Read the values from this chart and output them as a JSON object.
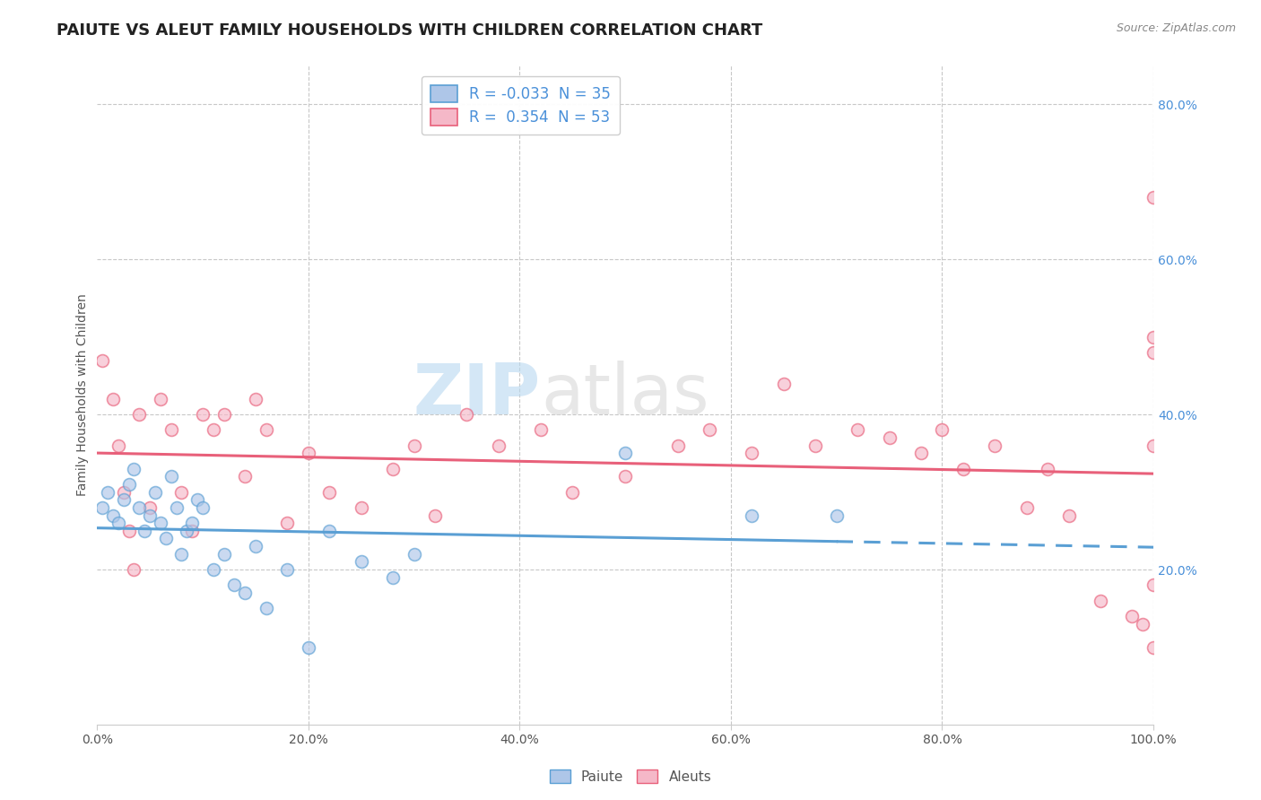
{
  "title": "PAIUTE VS ALEUT FAMILY HOUSEHOLDS WITH CHILDREN CORRELATION CHART",
  "source": "Source: ZipAtlas.com",
  "xlabel": "",
  "ylabel": "Family Households with Children",
  "watermark": "ZIPatlas",
  "background_color": "#ffffff",
  "plot_bg_color": "#ffffff",
  "grid_color": "#c8c8c8",
  "paiute_x": [
    0.5,
    1.0,
    1.5,
    2.0,
    2.5,
    3.0,
    3.5,
    4.0,
    4.5,
    5.0,
    5.5,
    6.0,
    6.5,
    7.0,
    7.5,
    8.0,
    8.5,
    9.0,
    9.5,
    10.0,
    11.0,
    12.0,
    13.0,
    14.0,
    15.0,
    16.0,
    18.0,
    20.0,
    22.0,
    25.0,
    28.0,
    30.0,
    50.0,
    62.0,
    70.0
  ],
  "paiute_y": [
    28.0,
    30.0,
    27.0,
    26.0,
    29.0,
    31.0,
    33.0,
    28.0,
    25.0,
    27.0,
    30.0,
    26.0,
    24.0,
    32.0,
    28.0,
    22.0,
    25.0,
    26.0,
    29.0,
    28.0,
    20.0,
    22.0,
    18.0,
    17.0,
    23.0,
    15.0,
    20.0,
    10.0,
    25.0,
    21.0,
    19.0,
    22.0,
    35.0,
    27.0,
    27.0
  ],
  "aleuts_x": [
    0.5,
    1.5,
    2.0,
    2.5,
    3.0,
    3.5,
    4.0,
    5.0,
    6.0,
    7.0,
    8.0,
    9.0,
    10.0,
    11.0,
    12.0,
    14.0,
    15.0,
    16.0,
    18.0,
    20.0,
    22.0,
    25.0,
    28.0,
    30.0,
    32.0,
    35.0,
    38.0,
    42.0,
    45.0,
    50.0,
    55.0,
    58.0,
    62.0,
    65.0,
    68.0,
    72.0,
    75.0,
    78.0,
    80.0,
    82.0,
    85.0,
    88.0,
    90.0,
    92.0,
    95.0,
    98.0,
    99.0,
    100.0,
    100.0,
    100.0,
    100.0,
    100.0,
    100.0
  ],
  "aleuts_y": [
    47.0,
    42.0,
    36.0,
    30.0,
    25.0,
    20.0,
    40.0,
    28.0,
    42.0,
    38.0,
    30.0,
    25.0,
    40.0,
    38.0,
    40.0,
    32.0,
    42.0,
    38.0,
    26.0,
    35.0,
    30.0,
    28.0,
    33.0,
    36.0,
    27.0,
    40.0,
    36.0,
    38.0,
    30.0,
    32.0,
    36.0,
    38.0,
    35.0,
    44.0,
    36.0,
    38.0,
    37.0,
    35.0,
    38.0,
    33.0,
    36.0,
    28.0,
    33.0,
    27.0,
    16.0,
    14.0,
    13.0,
    68.0,
    50.0,
    48.0,
    36.0,
    18.0,
    10.0
  ],
  "paiute_color": "#aec6e8",
  "aleuts_color": "#f5b8c8",
  "paiute_edge_color": "#5a9fd4",
  "aleuts_edge_color": "#e8607a",
  "paiute_line_color": "#5a9fd4",
  "aleuts_line_color": "#e8607a",
  "paiute_r": -0.033,
  "paiute_n": 35,
  "aleuts_r": 0.354,
  "aleuts_n": 53,
  "xlim": [
    0,
    100
  ],
  "ylim": [
    0,
    85
  ],
  "xticks": [
    0,
    20,
    40,
    60,
    80,
    100
  ],
  "xtick_labels": [
    "0.0%",
    "20.0%",
    "40.0%",
    "60.0%",
    "80.0%",
    "100.0%"
  ],
  "yticks": [
    0,
    20,
    40,
    60,
    80
  ],
  "ytick_right_labels": [
    "",
    "20.0%",
    "40.0%",
    "60.0%",
    "80.0%"
  ],
  "hlines": [
    20,
    40,
    60,
    80
  ],
  "vlines": [
    20,
    40,
    60,
    80,
    100
  ],
  "marker_size": 100,
  "marker_alpha": 0.65,
  "title_fontsize": 13,
  "axis_label_fontsize": 10,
  "tick_fontsize": 10,
  "right_tick_color": "#4a90d9"
}
